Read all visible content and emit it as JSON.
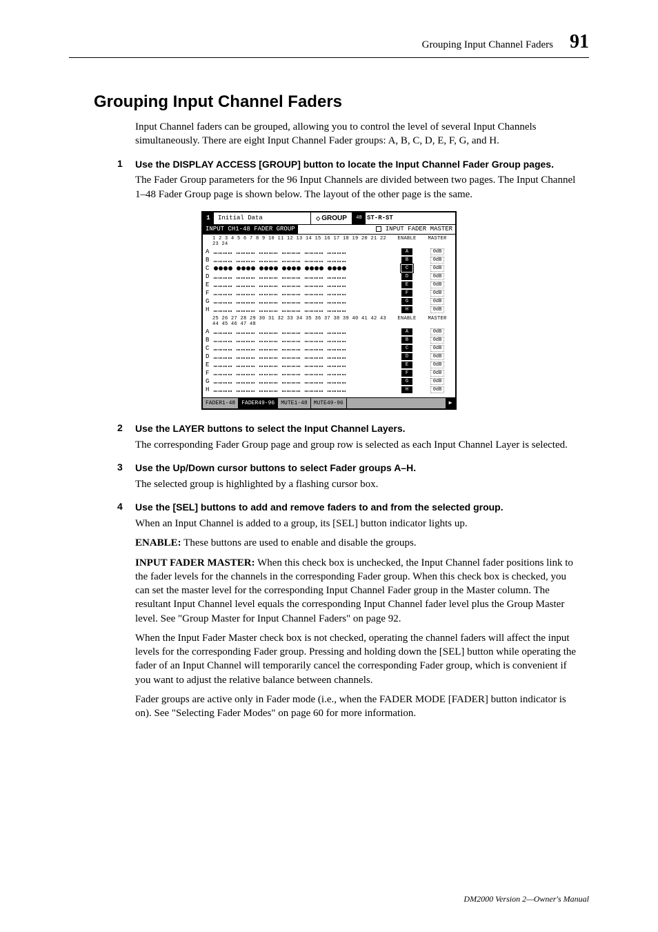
{
  "header": {
    "running_head": "Grouping Input Channel Faders",
    "page": "91"
  },
  "title": "Grouping Input Channel Faders",
  "intro": "Input Channel faders can be grouped, allowing you to control the level of several Input Channels simultaneously. There are eight Input Channel Fader groups: A, B, C, D, E, F, G, and H.",
  "steps": [
    {
      "n": "1",
      "heading": "Use the DISPLAY ACCESS [GROUP] button to locate the Input Channel Fader Group pages.",
      "body1": "The Fader Group parameters for the 96 Input Channels are divided between two pages. The Input Channel 1–48 Fader Group page is shown below. The layout of the other page is the same."
    },
    {
      "n": "2",
      "heading": "Use the LAYER buttons to select the Input Channel Layers.",
      "body1": "The corresponding Fader Group page and group row is selected as each Input Channel Layer is selected."
    },
    {
      "n": "3",
      "heading": "Use the Up/Down cursor buttons to select Fader groups A–H.",
      "body1": "The selected group is highlighted by a flashing cursor box."
    },
    {
      "n": "4",
      "heading": "Use the [SEL] buttons to add and remove faders to and from the selected group.",
      "body1": "When an Input Channel is added to a group, its [SEL] button indicator lights up.",
      "enable_label": "ENABLE:",
      "enable_text": "These buttons are used to enable and disable the groups.",
      "ifm_label": "INPUT FADER MASTER:",
      "ifm_text": "When this check box is unchecked, the Input Channel fader positions link to the fader levels for the channels in the corresponding Fader group. When this check box is checked, you can set the master level for the corresponding Input Channel Fader group in the Master column. The resultant Input Channel level equals the corresponding Input Channel fader level plus the Group Master level. See \"Group Master for Input Channel Faders\" on page 92.",
      "p3": "When the Input Fader Master check box is not checked, operating the channel faders will affect the input levels for the corresponding Fader group. Pressing and holding down the [SEL] button while operating the fader of an Input Channel will temporarily cancel the corresponding Fader group, which is convenient if you want to adjust the relative balance between channels.",
      "p4": "Fader groups are active only in Fader mode (i.e., when the FADER MODE [FADER] button indicator is on). See \"Selecting Fader Modes\" on page 60 for more information."
    }
  ],
  "lcd": {
    "scene_num": "1",
    "initial": "Initial Data",
    "grouptitle": "GROUP",
    "meter": "48",
    "ch_label": "ST-R-ST",
    "subtitle": "INPUT CH1-48 FADER GROUP",
    "ifm_check": "INPUT FADER MASTER",
    "col_enable": "ENABLE",
    "col_master": "MASTER",
    "nums1": "1 2 3 4  5 6 7 8  9 10 11 12  13 14 15 16  17 18 19 20  21 22 23 24",
    "nums2": "25 26 27 28  29 30 31 32  33 34 35 36  37 38 39 40  41 42 43 44  45 46 47 48",
    "rows1": [
      "A",
      "B",
      "C",
      "D",
      "E",
      "F",
      "G",
      "H"
    ],
    "rows2": [
      "A",
      "B",
      "C",
      "D",
      "E",
      "F",
      "G",
      "H"
    ],
    "master_val": "0dB",
    "sel_row": "C",
    "tabs": [
      "FADER1-48",
      "FADER49-96",
      "MUTE1-48",
      "MUTE49-96"
    ],
    "nav": "▶"
  },
  "footer": "DM2000 Version 2—Owner's Manual"
}
